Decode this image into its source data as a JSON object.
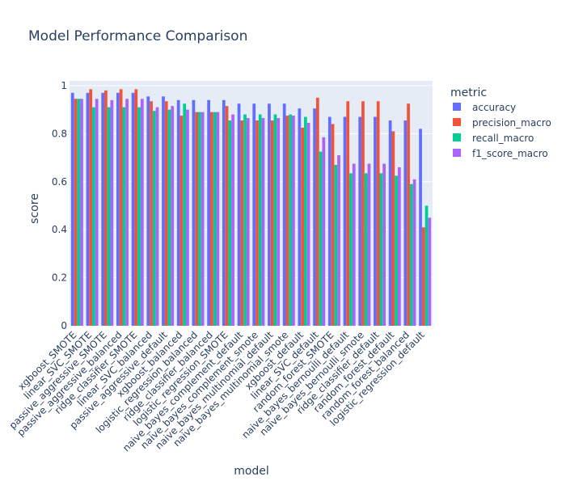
{
  "chart_data": {
    "type": "bar",
    "title": "Model Performance Comparison",
    "xlabel": "model",
    "ylabel": "score",
    "ylim": [
      0,
      1.02
    ],
    "yticks": [
      0,
      0.2,
      0.4,
      0.6,
      0.8,
      1
    ],
    "ytick_labels": [
      "0",
      "0.2",
      "0.4",
      "0.6",
      "0.8",
      "1"
    ],
    "grid": true,
    "legend_title": "metric",
    "legend_position": "right",
    "categories": [
      "xgboost_SMOTE",
      "linear_SVC_SMOTE",
      "passive_aggressive_SMOTE",
      "passive_aggressive_balanced",
      "ridge_classifier_SMOTE",
      "linear_SVC_balanced",
      "passive_aggressive_default",
      "xgboost_balanced",
      "logistic_regression_balanced",
      "ridge_classifier_balanced",
      "logistic_regression_SMOTE",
      "naive_bayes_complement_default",
      "naive_bayes_complement_smote",
      "naive_bayes_multinomial_default",
      "naive_bayes_multinomial_smote",
      "xgboost_default",
      "linear_SVC_default",
      "random_forest_SMOTE",
      "naive_bayes_bernoulli_default",
      "naive_bayes_bernoulli_smote",
      "ridge_classifier_default",
      "random_forest_default",
      "random_forest_balanced",
      "logistic_regression_default"
    ],
    "series": [
      {
        "name": "accuracy",
        "color": "#636efa",
        "values": [
          0.97,
          0.97,
          0.97,
          0.97,
          0.97,
          0.955,
          0.955,
          0.94,
          0.94,
          0.94,
          0.94,
          0.925,
          0.925,
          0.925,
          0.925,
          0.905,
          0.905,
          0.87,
          0.87,
          0.87,
          0.87,
          0.855,
          0.855,
          0.82
        ]
      },
      {
        "name": "precision_macro",
        "color": "#ef553b",
        "values": [
          0.945,
          0.985,
          0.98,
          0.985,
          0.985,
          0.935,
          0.935,
          0.875,
          0.89,
          0.89,
          0.915,
          0.855,
          0.855,
          0.855,
          0.875,
          0.825,
          0.95,
          0.84,
          0.935,
          0.935,
          0.935,
          0.81,
          0.925,
          0.41
        ]
      },
      {
        "name": "recall_macro",
        "color": "#00cc96",
        "values": [
          0.945,
          0.91,
          0.91,
          0.91,
          0.91,
          0.895,
          0.9,
          0.925,
          0.89,
          0.89,
          0.855,
          0.88,
          0.88,
          0.88,
          0.88,
          0.87,
          0.725,
          0.67,
          0.635,
          0.635,
          0.635,
          0.625,
          0.59,
          0.5
        ]
      },
      {
        "name": "f1_score_macro",
        "color": "#ab63fa",
        "values": [
          0.945,
          0.945,
          0.94,
          0.945,
          0.945,
          0.91,
          0.915,
          0.9,
          0.89,
          0.89,
          0.88,
          0.865,
          0.865,
          0.865,
          0.875,
          0.845,
          0.785,
          0.71,
          0.675,
          0.675,
          0.675,
          0.66,
          0.61,
          0.45
        ]
      }
    ]
  }
}
